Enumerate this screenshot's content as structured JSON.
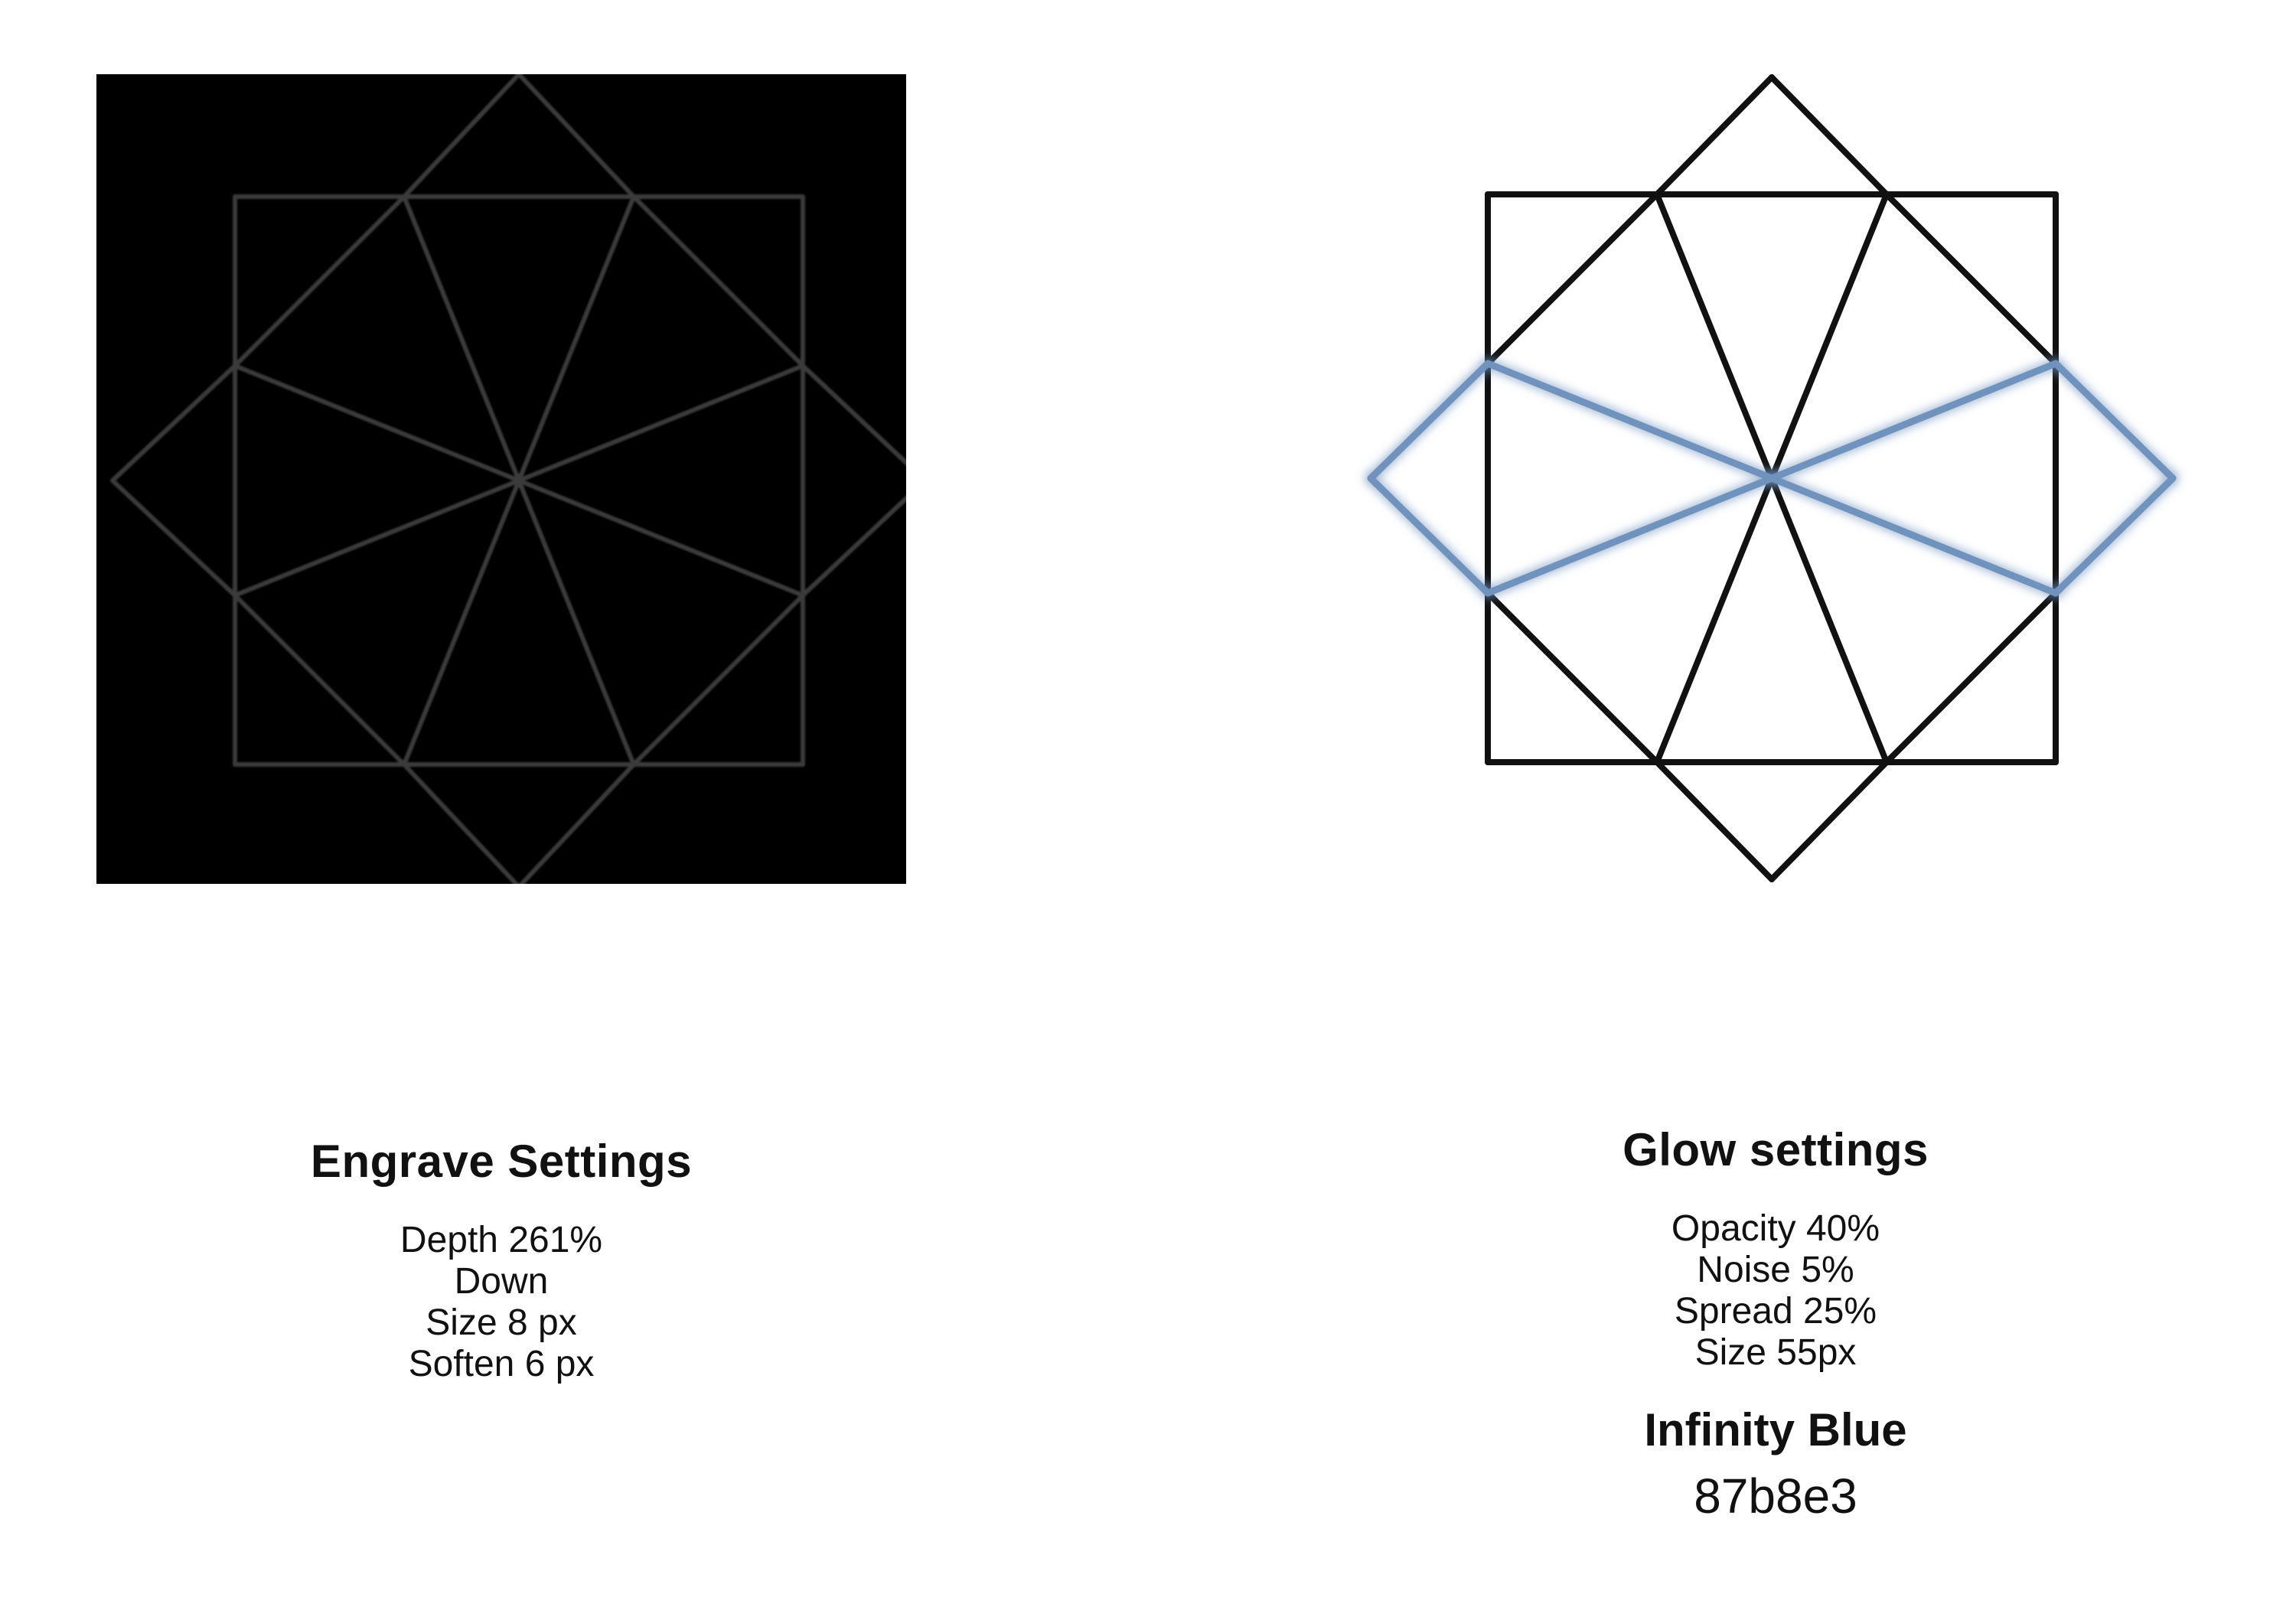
{
  "panels": {
    "engrave": {
      "background_color": "#000000",
      "line_color": "#3a3a3a",
      "title": "Engrave Settings",
      "settings": [
        "Depth 261%",
        "Down",
        "Size 8 px",
        "Soften 6 px"
      ]
    },
    "glow": {
      "line_color": "#111111",
      "glow_color": "#87b8e3",
      "highlight_color": "#6f93bd",
      "title": "Glow settings",
      "settings": [
        "Opacity 40%",
        "Noise 5%",
        "Spread 25%",
        "Size 55px"
      ],
      "color_name": "Infinity Blue",
      "color_hex": "87b8e3"
    }
  }
}
